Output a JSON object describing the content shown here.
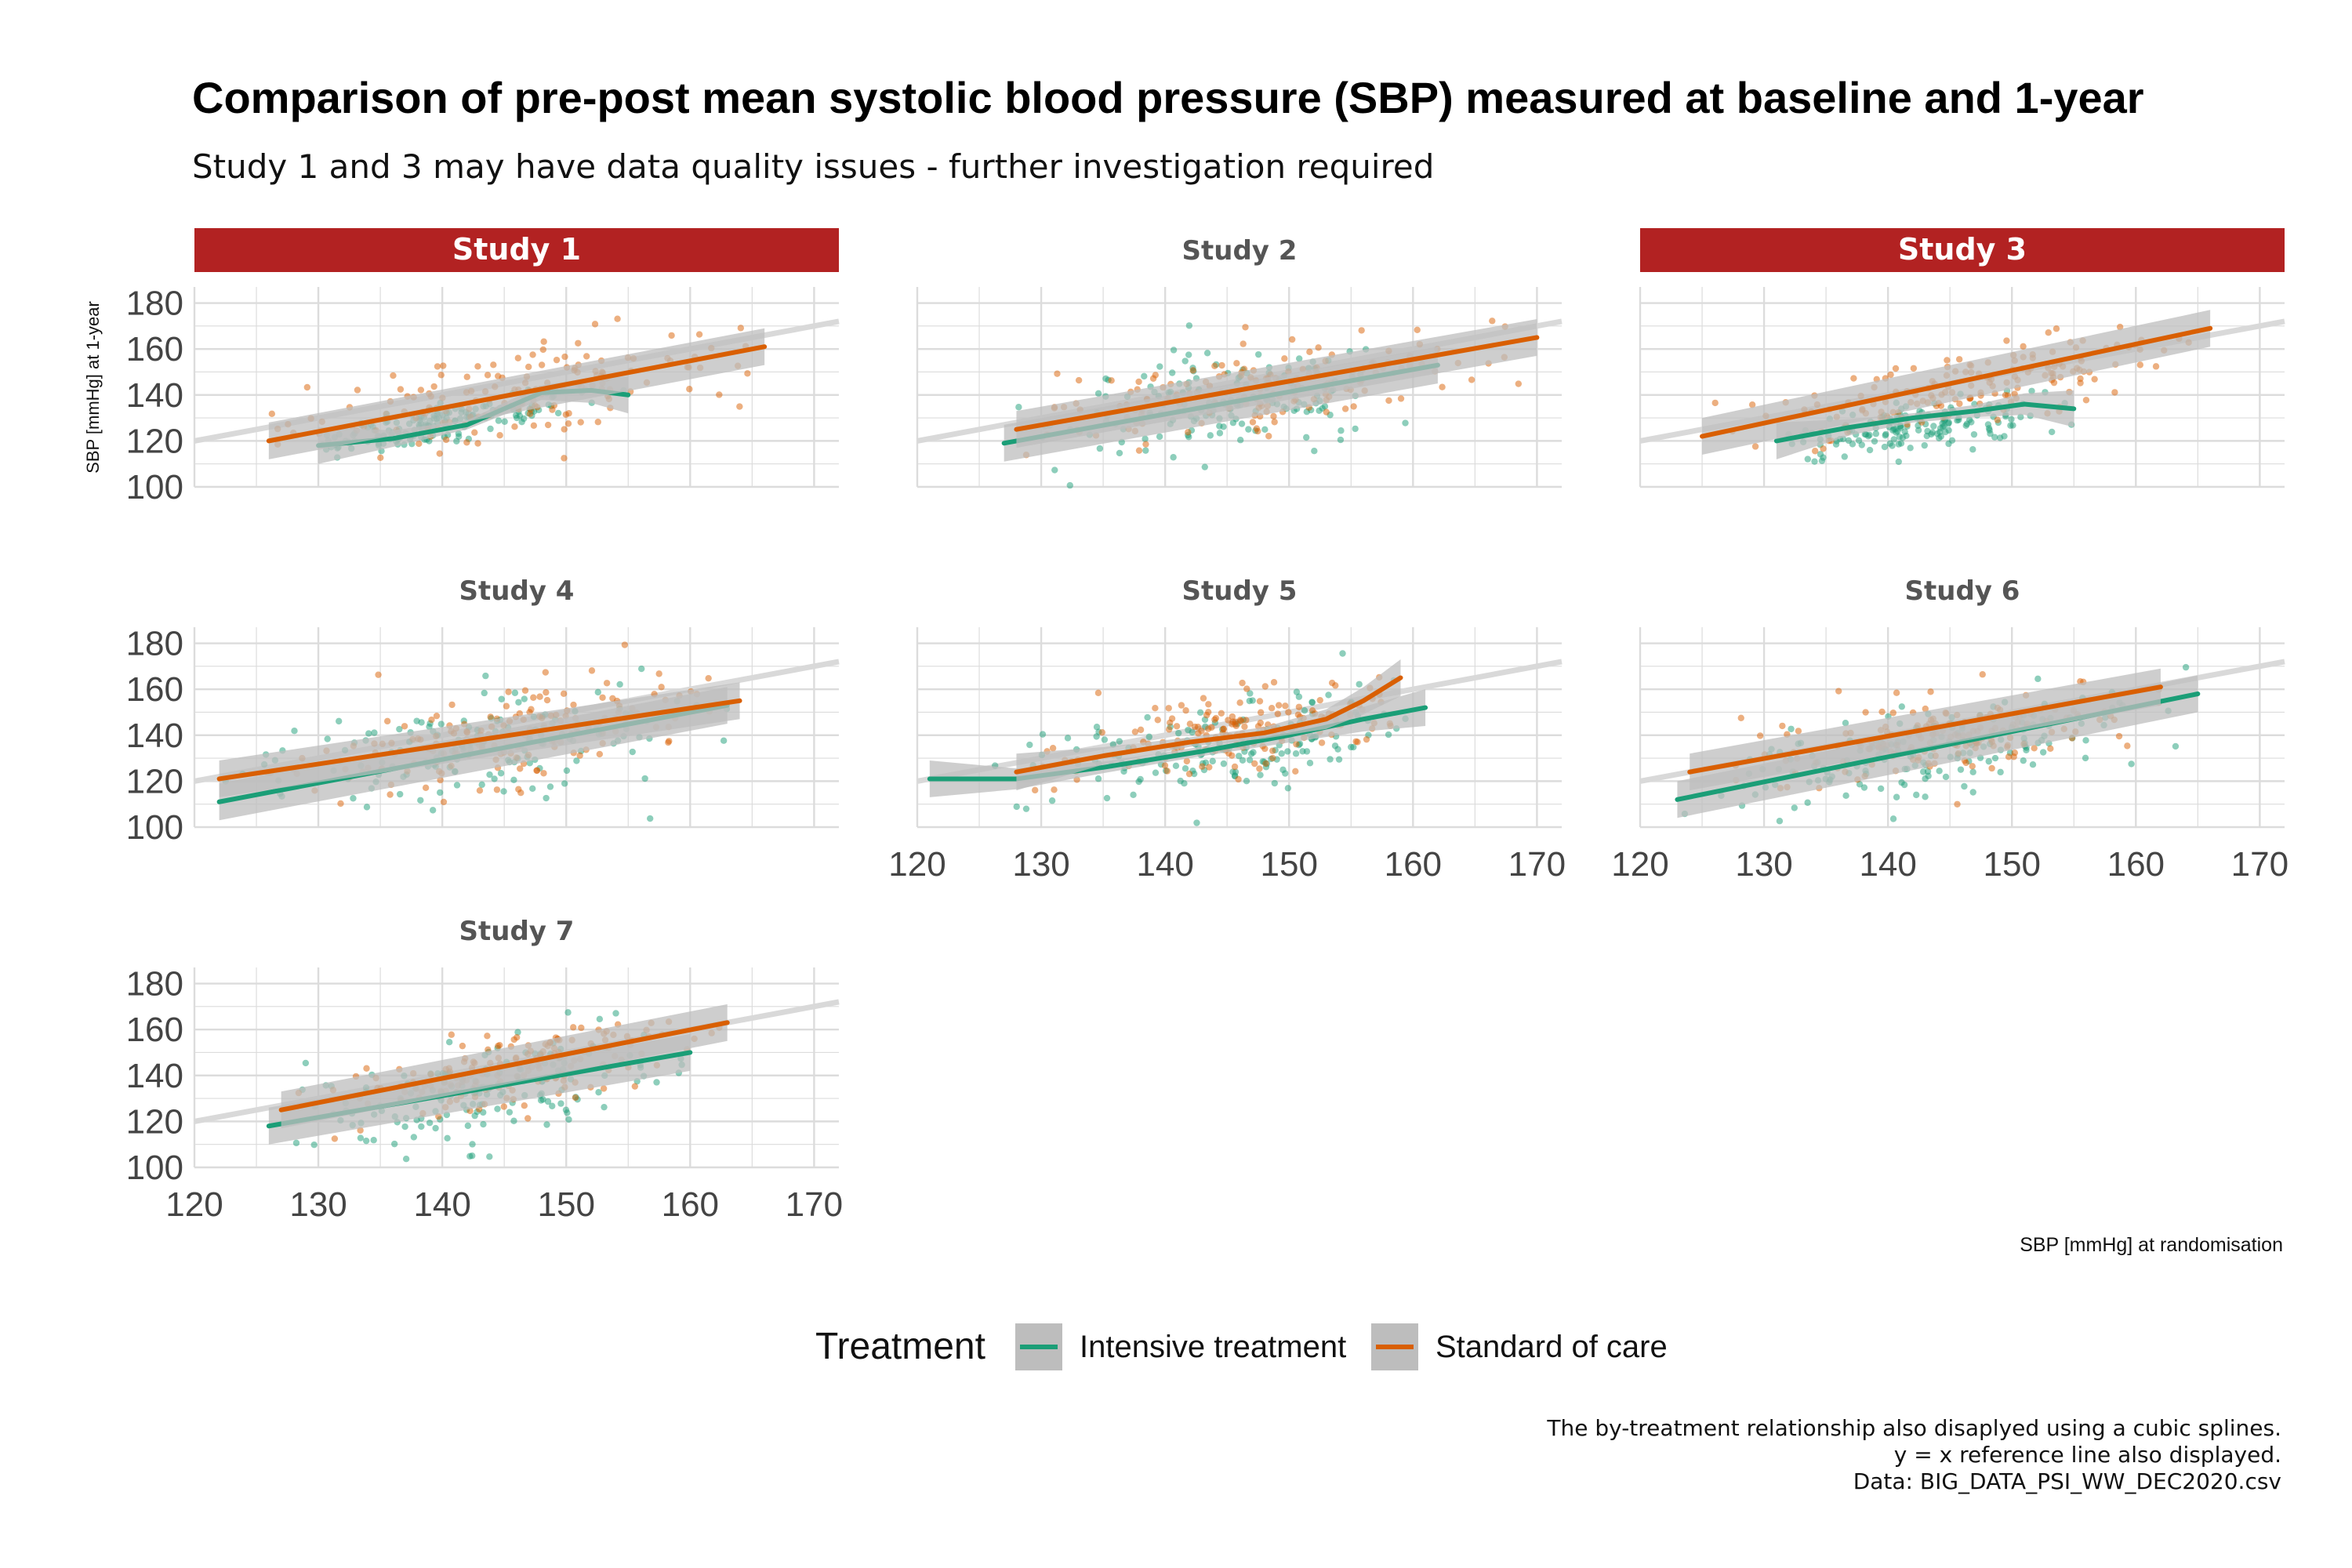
{
  "title": "Comparison of pre-post mean systolic blood pressure (SBP) measured at baseline and 1-year",
  "subtitle": "Study 1 and 3 may have data quality issues - further investigation required",
  "caption": [
    "The by-treatment relationship also disaplyed using a cubic splines.",
    "y = x reference line also displayed.",
    "Data: BIG_DATA_PSI_WW_DEC2020.csv"
  ],
  "colors": {
    "intensive": "#1b9e77",
    "standard": "#d95f02",
    "highlight_strip": "#b22222",
    "reference_line": "#d9d9d9",
    "ribbon": "#bdbdbd",
    "grid": "#dcdcdc"
  },
  "chart_data": {
    "type": "scatter",
    "xlabel": "SBP [mmHg] at randomisation",
    "ylabel": "SBP [mmHg] at 1-year",
    "xlim": [
      120,
      172
    ],
    "ylim": [
      100,
      187
    ],
    "x_ticks": [
      120,
      130,
      140,
      150,
      160,
      170
    ],
    "y_ticks": [
      100,
      120,
      140,
      160,
      180
    ],
    "reference_line": "y = x",
    "grid": true,
    "legend": {
      "title": "Treatment",
      "position": "bottom",
      "items": [
        "Intensive treatment",
        "Standard of care"
      ]
    },
    "panels": [
      {
        "name": "Study 1",
        "highlighted": true,
        "series": [
          {
            "name": "Intensive treatment",
            "x_range": [
              130,
              155
            ],
            "fit": [
              [
                130,
                118
              ],
              [
                136,
                121
              ],
              [
                142,
                127
              ],
              [
                148,
                141
              ],
              [
                152,
                142
              ],
              [
                155,
                140
              ]
            ],
            "scatter_center": [
              140,
              128
            ],
            "slope": 0.9,
            "spread_x": 6,
            "spread_y": 4
          },
          {
            "name": "Standard of care",
            "x_range": [
              126,
              166
            ],
            "fit": [
              [
                126,
                120
              ],
              [
                166,
                161
              ]
            ],
            "scatter_center": [
              146,
              140
            ],
            "slope": 1.0,
            "spread_x": 8,
            "spread_y": 9
          }
        ]
      },
      {
        "name": "Study 2",
        "highlighted": false,
        "series": [
          {
            "name": "Intensive treatment",
            "x_range": [
              127,
              162
            ],
            "fit": [
              [
                127,
                119
              ],
              [
                162,
                153
              ]
            ],
            "scatter_center": [
              145,
              136
            ],
            "slope": 0.6,
            "spread_x": 7,
            "spread_y": 11
          },
          {
            "name": "Standard of care",
            "x_range": [
              128,
              170
            ],
            "fit": [
              [
                128,
                125
              ],
              [
                170,
                165
              ]
            ],
            "scatter_center": [
              147,
              142
            ],
            "slope": 0.8,
            "spread_x": 8,
            "spread_y": 10
          }
        ]
      },
      {
        "name": "Study 3",
        "highlighted": true,
        "series": [
          {
            "name": "Intensive treatment",
            "x_range": [
              131,
              155
            ],
            "fit": [
              [
                131,
                120
              ],
              [
                137,
                126
              ],
              [
                142,
                130
              ],
              [
                147,
                133
              ],
              [
                151,
                136
              ],
              [
                155,
                134
              ]
            ],
            "scatter_center": [
              142,
              126
            ],
            "slope": 0.7,
            "spread_x": 6,
            "spread_y": 5
          },
          {
            "name": "Standard of care",
            "x_range": [
              125,
              166
            ],
            "fit": [
              [
                125,
                122
              ],
              [
                166,
                169
              ]
            ],
            "scatter_center": [
              147,
              144
            ],
            "slope": 1.0,
            "spread_x": 8,
            "spread_y": 8
          }
        ]
      },
      {
        "name": "Study 4",
        "highlighted": false,
        "series": [
          {
            "name": "Intensive treatment",
            "x_range": [
              122,
              163
            ],
            "fit": [
              [
                122,
                111
              ],
              [
                163,
                153
              ]
            ],
            "scatter_center": [
              143,
              134
            ],
            "slope": 0.7,
            "spread_x": 8,
            "spread_y": 12
          },
          {
            "name": "Standard of care",
            "x_range": [
              122,
              164
            ],
            "fit": [
              [
                122,
                121
              ],
              [
                164,
                155
              ]
            ],
            "scatter_center": [
              145,
              140
            ],
            "slope": 0.7,
            "spread_x": 8,
            "spread_y": 10
          }
        ]
      },
      {
        "name": "Study 5",
        "highlighted": false,
        "series": [
          {
            "name": "Intensive treatment",
            "x_range": [
              121,
              161
            ],
            "fit": [
              [
                121,
                121
              ],
              [
                128,
                121
              ],
              [
                135,
                126
              ],
              [
                143,
                133
              ],
              [
                150,
                140
              ],
              [
                156,
                147
              ],
              [
                161,
                152
              ]
            ],
            "scatter_center": [
              145,
              135
            ],
            "slope": 0.7,
            "spread_x": 7,
            "spread_y": 10
          },
          {
            "name": "Standard of care",
            "x_range": [
              128,
              159
            ],
            "fit": [
              [
                128,
                124
              ],
              [
                135,
                131
              ],
              [
                142,
                137
              ],
              [
                148,
                141
              ],
              [
                153,
                147
              ],
              [
                156,
                155
              ],
              [
                159,
                165
              ]
            ],
            "scatter_center": [
              145,
              141
            ],
            "slope": 0.8,
            "spread_x": 7,
            "spread_y": 9
          }
        ]
      },
      {
        "name": "Study 6",
        "highlighted": false,
        "series": [
          {
            "name": "Intensive treatment",
            "x_range": [
              123,
              165
            ],
            "fit": [
              [
                123,
                112
              ],
              [
                165,
                158
              ]
            ],
            "scatter_center": [
              144,
              133
            ],
            "slope": 0.8,
            "spread_x": 8,
            "spread_y": 10
          },
          {
            "name": "Standard of care",
            "x_range": [
              124,
              162
            ],
            "fit": [
              [
                124,
                124
              ],
              [
                162,
                161
              ]
            ],
            "scatter_center": [
              145,
              140
            ],
            "slope": 0.7,
            "spread_x": 8,
            "spread_y": 9
          }
        ]
      },
      {
        "name": "Study 7",
        "highlighted": false,
        "series": [
          {
            "name": "Intensive treatment",
            "x_range": [
              126,
              160
            ],
            "fit": [
              [
                126,
                118
              ],
              [
                160,
                150
              ]
            ],
            "scatter_center": [
              143,
              132
            ],
            "slope": 0.8,
            "spread_x": 7,
            "spread_y": 10
          },
          {
            "name": "Standard of care",
            "x_range": [
              127,
              163
            ],
            "fit": [
              [
                127,
                125
              ],
              [
                163,
                163
              ]
            ],
            "scatter_center": [
              146,
              143
            ],
            "slope": 1.0,
            "spread_x": 7,
            "spread_y": 8
          }
        ]
      }
    ]
  }
}
